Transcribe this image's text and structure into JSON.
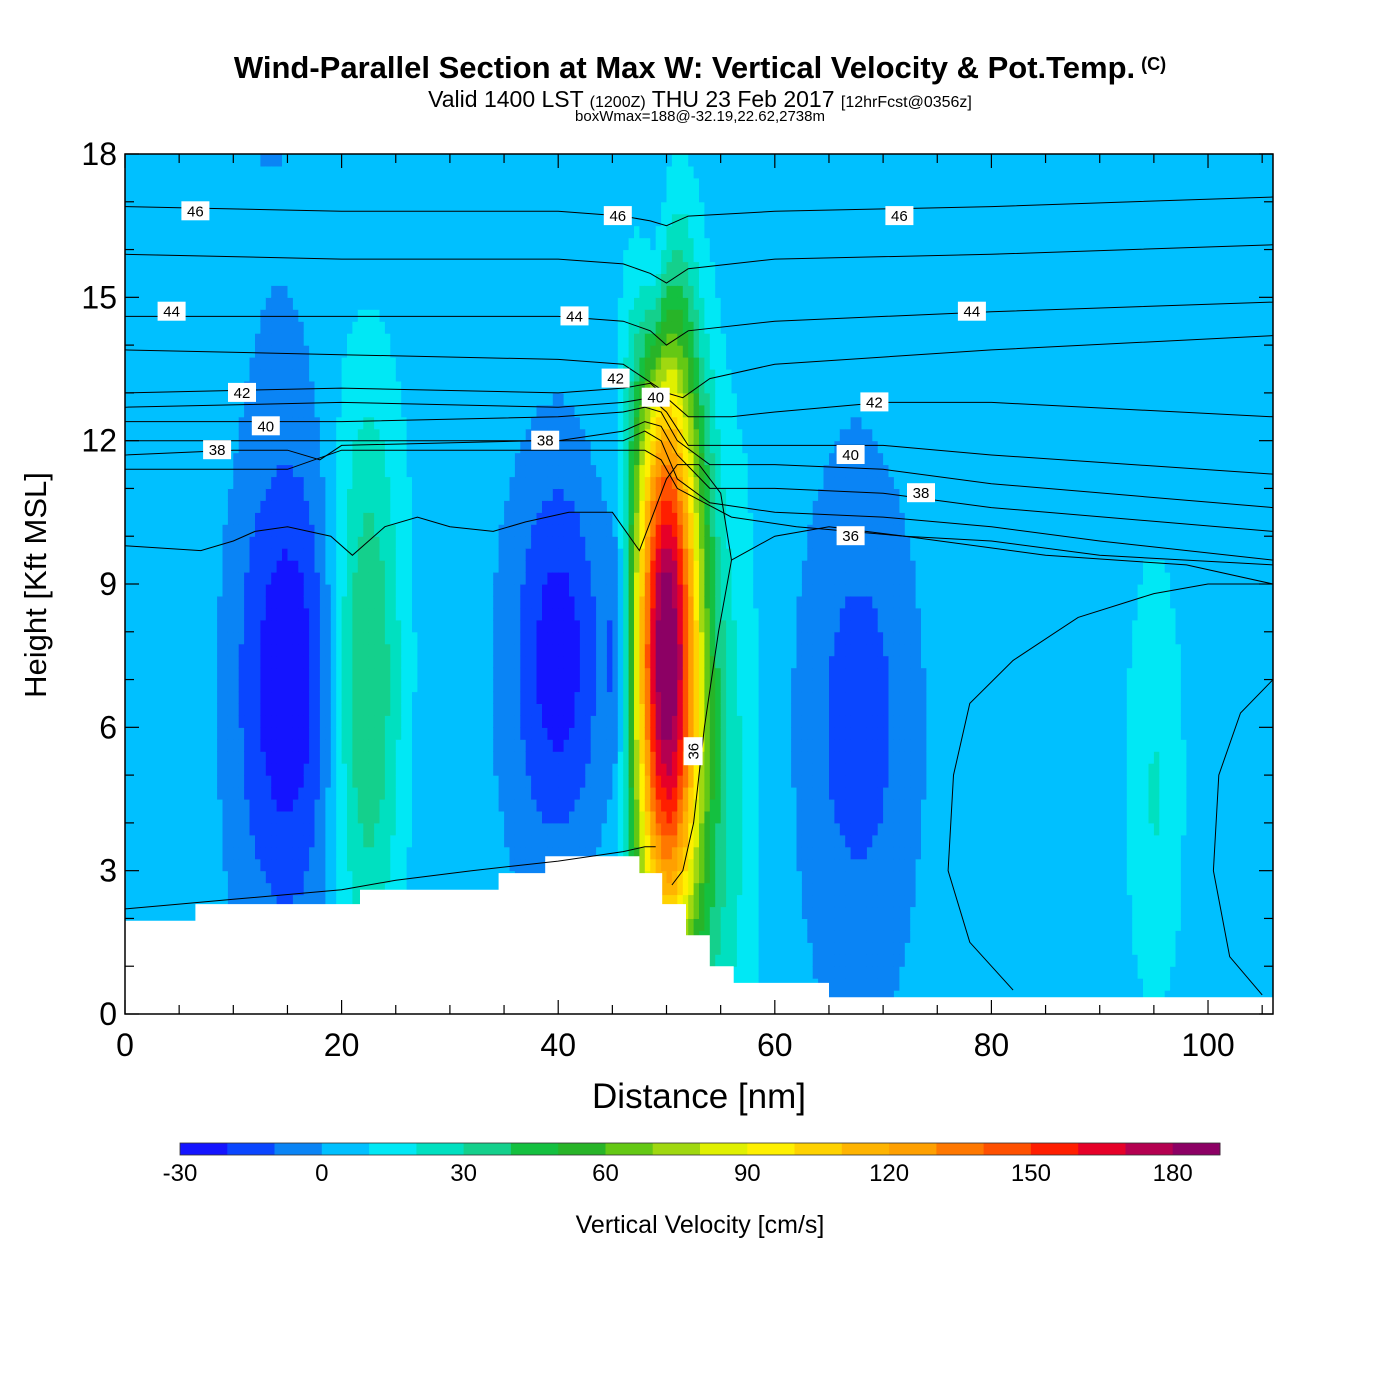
{
  "title": "Wind-Parallel Section at Max W: Vertical Velocity & Pot.Temp.",
  "copyright_mark": "(C)",
  "subtitle_valid": "Valid 1400 LST",
  "subtitle_zulu": "(1200Z)",
  "subtitle_date": "THU 23 Feb 2017",
  "subtitle_forecast": "[12hrFcst@0356z]",
  "subtitle2": "boxWmax=188@-32.19,22.62,2738m",
  "chart_data": {
    "type": "contour",
    "xlabel": "Distance [nm]",
    "ylabel": "Height [Kft MSL]",
    "xlim": [
      0,
      106
    ],
    "ylim": [
      0,
      18
    ],
    "xticks": [
      0,
      20,
      40,
      60,
      80,
      100
    ],
    "xtick_labels": [
      "0",
      "20",
      "40",
      "60",
      "80",
      "100"
    ],
    "yticks": [
      0,
      3,
      6,
      9,
      12,
      15,
      18
    ],
    "ytick_labels": [
      "0",
      "3",
      "6",
      "9",
      "12",
      "15",
      "18"
    ],
    "colorbar": {
      "label": "Vertical Velocity [cm/s]",
      "levels": [
        -30,
        -20,
        -10,
        0,
        10,
        20,
        30,
        40,
        50,
        60,
        70,
        80,
        90,
        100,
        110,
        120,
        130,
        140,
        150,
        160,
        170,
        180,
        190
      ],
      "colors": [
        "#1414ff",
        "#0a46ff",
        "#0a84f5",
        "#00c0ff",
        "#00e8f5",
        "#00e0c0",
        "#14d08c",
        "#14c040",
        "#28b428",
        "#64c814",
        "#a0d810",
        "#e0f000",
        "#fff000",
        "#ffd200",
        "#ffb400",
        "#ffa000",
        "#ff7800",
        "#ff5000",
        "#ff1e00",
        "#e60028",
        "#b40050",
        "#8c0064"
      ],
      "tick_values": [
        -30,
        0,
        30,
        60,
        90,
        120,
        150,
        180
      ],
      "tick_labels": [
        "-30",
        "0",
        "30",
        "60",
        "90",
        "120",
        "150",
        "180"
      ]
    },
    "theta_contours": {
      "label_texts": [
        "46",
        "46",
        "46",
        "44",
        "44",
        "44",
        "42",
        "42",
        "42",
        "40",
        "40",
        "40",
        "38",
        "38",
        "38",
        "36",
        "36"
      ],
      "label_positions_data": [
        [
          6.5,
          16.8
        ],
        [
          45.5,
          16.7
        ],
        [
          71.5,
          16.7
        ],
        [
          4.3,
          14.7
        ],
        [
          41.5,
          14.6
        ],
        [
          78.2,
          14.7
        ],
        [
          10.8,
          13.0
        ],
        [
          45.3,
          13.3
        ],
        [
          69.2,
          12.8
        ],
        [
          13.0,
          12.3
        ],
        [
          49.0,
          12.9
        ],
        [
          67.0,
          11.7
        ],
        [
          8.5,
          11.8
        ],
        [
          38.8,
          12.0
        ],
        [
          73.5,
          10.9
        ],
        [
          67.0,
          10.0
        ],
        [
          52.5,
          5.5
        ]
      ],
      "isentropes": [
        {
          "value": 46,
          "points": [
            [
              0,
              16.9
            ],
            [
              20,
              16.8
            ],
            [
              40,
              16.8
            ],
            [
              46,
              16.7
            ],
            [
              48.5,
              16.6
            ],
            [
              50,
              16.5
            ],
            [
              52,
              16.7
            ],
            [
              60,
              16.8
            ],
            [
              80,
              16.9
            ],
            [
              106,
              17.1
            ]
          ]
        },
        {
          "value": 45,
          "points": [
            [
              0,
              15.9
            ],
            [
              20,
              15.8
            ],
            [
              40,
              15.8
            ],
            [
              46,
              15.7
            ],
            [
              48.5,
              15.5
            ],
            [
              50,
              15.3
            ],
            [
              52,
              15.6
            ],
            [
              60,
              15.8
            ],
            [
              80,
              15.9
            ],
            [
              106,
              16.1
            ]
          ]
        },
        {
          "value": 44,
          "points": [
            [
              0,
              14.6
            ],
            [
              20,
              14.6
            ],
            [
              40,
              14.6
            ],
            [
              46,
              14.5
            ],
            [
              48.5,
              14.3
            ],
            [
              50,
              14.0
            ],
            [
              52,
              14.3
            ],
            [
              60,
              14.5
            ],
            [
              80,
              14.7
            ],
            [
              106,
              14.9
            ]
          ]
        },
        {
          "value": 43,
          "points": [
            [
              0,
              13.9
            ],
            [
              20,
              13.8
            ],
            [
              40,
              13.7
            ],
            [
              46,
              13.6
            ],
            [
              48,
              13.3
            ],
            [
              50,
              13.0
            ],
            [
              51.5,
              12.9
            ],
            [
              54,
              13.3
            ],
            [
              60,
              13.6
            ],
            [
              80,
              13.9
            ],
            [
              106,
              14.2
            ]
          ]
        },
        {
          "value": 42,
          "points": [
            [
              0,
              13.0
            ],
            [
              20,
              13.1
            ],
            [
              40,
              13.0
            ],
            [
              46,
              13.1
            ],
            [
              48.5,
              13.2
            ],
            [
              50,
              12.9
            ],
            [
              52,
              12.5
            ],
            [
              56,
              12.5
            ],
            [
              60,
              12.6
            ],
            [
              70,
              12.8
            ],
            [
              80,
              12.8
            ],
            [
              106,
              12.5
            ]
          ]
        },
        {
          "value": 41,
          "points": [
            [
              0,
              12.7
            ],
            [
              20,
              12.8
            ],
            [
              40,
              12.7
            ],
            [
              46,
              12.8
            ],
            [
              48.5,
              12.9
            ],
            [
              50,
              12.6
            ],
            [
              52,
              11.9
            ],
            [
              60,
              11.9
            ],
            [
              70,
              11.9
            ],
            [
              80,
              11.7
            ],
            [
              106,
              11.3
            ]
          ]
        },
        {
          "value": 40,
          "points": [
            [
              0,
              12.4
            ],
            [
              20,
              12.4
            ],
            [
              40,
              12.5
            ],
            [
              46,
              12.6
            ],
            [
              48,
              12.7
            ],
            [
              49.5,
              12.6
            ],
            [
              51,
              12.0
            ],
            [
              54,
              11.5
            ],
            [
              60,
              11.5
            ],
            [
              70,
              11.4
            ],
            [
              80,
              11.1
            ],
            [
              106,
              10.6
            ]
          ]
        },
        {
          "value": 39,
          "points": [
            [
              0,
              12.0
            ],
            [
              20,
              12.0
            ],
            [
              40,
              12.0
            ],
            [
              46,
              12.2
            ],
            [
              48,
              12.4
            ],
            [
              49.5,
              12.3
            ],
            [
              51,
              11.7
            ],
            [
              54,
              11.0
            ],
            [
              60,
              11.0
            ],
            [
              70,
              10.9
            ],
            [
              80,
              10.6
            ],
            [
              106,
              10.1
            ]
          ]
        },
        {
          "value": 38,
          "points": [
            [
              0,
              11.7
            ],
            [
              10,
              11.8
            ],
            [
              15,
              11.8
            ],
            [
              18,
              11.6
            ],
            [
              20,
              11.9
            ],
            [
              38,
              12.0
            ],
            [
              46,
              12.0
            ],
            [
              48,
              12.2
            ],
            [
              49.5,
              12.0
            ],
            [
              51,
              11.2
            ],
            [
              54,
              10.7
            ],
            [
              60,
              10.5
            ],
            [
              70,
              10.4
            ],
            [
              80,
              10.2
            ],
            [
              90,
              9.9
            ],
            [
              106,
              9.5
            ]
          ]
        },
        {
          "value": 37,
          "points": [
            [
              0,
              11.4
            ],
            [
              15,
              11.4
            ],
            [
              20,
              11.8
            ],
            [
              40,
              11.8
            ],
            [
              48,
              11.8
            ],
            [
              49.5,
              11.6
            ],
            [
              51,
              11.0
            ],
            [
              56,
              10.4
            ],
            [
              62,
              10.2
            ],
            [
              72,
              10.0
            ],
            [
              85,
              9.6
            ],
            [
              98,
              9.4
            ],
            [
              106,
              9.0
            ]
          ]
        },
        {
          "value": 36,
          "points": [
            [
              0,
              9.8
            ],
            [
              7,
              9.7
            ],
            [
              10,
              9.9
            ],
            [
              12,
              10.1
            ],
            [
              15,
              10.2
            ],
            [
              19,
              10.0
            ],
            [
              21,
              9.6
            ],
            [
              24,
              10.2
            ],
            [
              27,
              10.4
            ],
            [
              30,
              10.2
            ],
            [
              34,
              10.1
            ],
            [
              37,
              10.3
            ],
            [
              41,
              10.5
            ],
            [
              45,
              10.5
            ],
            [
              47.5,
              9.7
            ],
            [
              49,
              10.6
            ],
            [
              50,
              11.2
            ],
            [
              51,
              11.5
            ],
            [
              53,
              11.5
            ],
            [
              55,
              10.9
            ],
            [
              56,
              9.5
            ],
            [
              54.8,
              8.0
            ],
            [
              53.5,
              6.0
            ],
            [
              52.5,
              4.0
            ],
            [
              51.5,
              3.0
            ],
            [
              50.5,
              2.7
            ]
          ]
        },
        {
          "value": 36.5,
          "points": [
            [
              56,
              9.5
            ],
            [
              60,
              10.0
            ],
            [
              65,
              10.2
            ],
            [
              72,
              10.0
            ],
            [
              80,
              9.9
            ],
            [
              90,
              9.6
            ],
            [
              106,
              9.4
            ]
          ]
        },
        {
          "value": 35,
          "points": [
            [
              82,
              0.5
            ],
            [
              78,
              1.5
            ],
            [
              76,
              3.0
            ],
            [
              76.5,
              5.0
            ],
            [
              78,
              6.5
            ],
            [
              82,
              7.4
            ],
            [
              88,
              8.3
            ],
            [
              95,
              8.8
            ],
            [
              100,
              9.0
            ],
            [
              106,
              9.0
            ]
          ]
        },
        {
          "value": 34,
          "points": [
            [
              105,
              0.4
            ],
            [
              102,
              1.2
            ],
            [
              100.5,
              3.0
            ],
            [
              101,
              5.0
            ],
            [
              103,
              6.3
            ],
            [
              106,
              7.0
            ]
          ]
        },
        {
          "value": 36,
          "points": [
            [
              0,
              2.2
            ],
            [
              5,
              2.3
            ],
            [
              10,
              2.4
            ],
            [
              20,
              2.6
            ],
            [
              25,
              2.8
            ],
            [
              32,
              3.0
            ],
            [
              40,
              3.2
            ],
            [
              46,
              3.4
            ],
            [
              48,
              3.5
            ],
            [
              49,
              3.5
            ]
          ]
        }
      ]
    },
    "terrain": {
      "x": [
        0,
        6.5,
        6.5,
        21.7,
        21.7,
        34.5,
        34.5,
        38.8,
        38.8,
        47.5,
        47.5,
        49.6,
        49.6,
        51.8,
        51.8,
        54,
        54,
        56.2,
        56.2,
        65,
        65,
        106
      ],
      "y": [
        1.95,
        1.95,
        2.3,
        2.3,
        2.6,
        2.6,
        2.95,
        2.95,
        3.3,
        3.3,
        2.95,
        2.95,
        2.3,
        2.3,
        1.65,
        1.65,
        1.0,
        1.0,
        0.65,
        0.65,
        0.35,
        0.35
      ]
    },
    "w_features": [
      {
        "kind": "updraft_core",
        "x": 50.0,
        "z": 7.5,
        "wx": 2.2,
        "wz": 4.6,
        "peak": 188
      },
      {
        "kind": "updraft",
        "x": 22.2,
        "z": 6.9,
        "wx": 2.3,
        "wz": 4.0,
        "peak": 38
      },
      {
        "kind": "updraft",
        "x": 95.2,
        "z": 4.5,
        "wx": 1.8,
        "wz": 3.0,
        "peak": 15
      },
      {
        "kind": "updraft",
        "x": 54.5,
        "z": 4.0,
        "wx": 2.5,
        "wz": 4.5,
        "peak": 22
      },
      {
        "kind": "downdraft",
        "x": 15.2,
        "z": 7.0,
        "wx": 3.5,
        "wz": 3.5,
        "peak": -32
      },
      {
        "kind": "downdraft",
        "x": 40.0,
        "z": 7.5,
        "wx": 3.0,
        "wz": 3.0,
        "peak": -32
      },
      {
        "kind": "downdraft",
        "x": 45.5,
        "z": 7.6,
        "wx": 0.9,
        "wz": 2.5,
        "peak": -25
      },
      {
        "kind": "downdraft",
        "x": 67.8,
        "z": 6.2,
        "wx": 4.0,
        "wz": 3.5,
        "peak": -18
      },
      {
        "kind": "downdraft",
        "x": 49.0,
        "z": 15.8,
        "wx": 1.0,
        "wz": 2.0,
        "peak": -20
      }
    ]
  }
}
